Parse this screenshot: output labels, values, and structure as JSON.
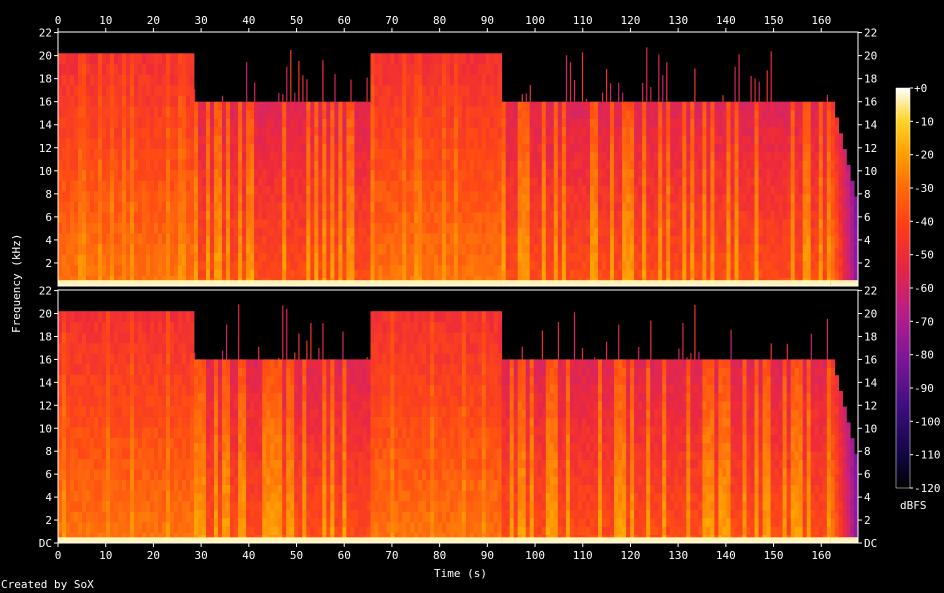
{
  "chart_data": [
    {
      "type": "heatmap",
      "panel": "channel-1",
      "xlabel": "Time (s)",
      "ylabel": "Frequency (kHz)",
      "x_ticks": [
        0,
        10,
        20,
        30,
        40,
        50,
        60,
        70,
        80,
        90,
        100,
        110,
        120,
        130,
        140,
        150,
        160
      ],
      "y_ticks": [
        "2",
        "4",
        "6",
        "8",
        "10",
        "12",
        "14",
        "16",
        "18",
        "20",
        "22"
      ],
      "xlim": [
        0,
        167.7
      ],
      "ylim": [
        0,
        22.05
      ],
      "colorscale": "sox-spectrogram",
      "segments": [
        {
          "start": 0,
          "end": 28.5,
          "cutoff_khz": 20.2,
          "level": "loud"
        },
        {
          "start": 28.5,
          "end": 65.5,
          "cutoff_khz": 16.0,
          "level": "sparse"
        },
        {
          "start": 65.5,
          "end": 93,
          "cutoff_khz": 20.2,
          "level": "loud"
        },
        {
          "start": 93,
          "end": 162,
          "cutoff_khz": 16.0,
          "level": "sparse"
        },
        {
          "start": 162,
          "end": 167.7,
          "cutoff_khz": 16.0,
          "level": "fade"
        }
      ]
    },
    {
      "type": "heatmap",
      "panel": "channel-2",
      "xlabel": "Time (s)",
      "ylabel": "Frequency (kHz)",
      "x_ticks": [
        0,
        10,
        20,
        30,
        40,
        50,
        60,
        70,
        80,
        90,
        100,
        110,
        120,
        130,
        140,
        150,
        160
      ],
      "y_ticks": [
        "DC",
        "2",
        "4",
        "6",
        "8",
        "10",
        "12",
        "14",
        "16",
        "18",
        "20",
        "22"
      ],
      "xlim": [
        0,
        167.7
      ],
      "ylim": [
        0,
        22.05
      ],
      "colorscale": "sox-spectrogram",
      "segments": [
        {
          "start": 0,
          "end": 28.5,
          "cutoff_khz": 20.2,
          "level": "loud"
        },
        {
          "start": 28.5,
          "end": 65.5,
          "cutoff_khz": 16.0,
          "level": "sparse"
        },
        {
          "start": 65.5,
          "end": 93,
          "cutoff_khz": 20.2,
          "level": "loud"
        },
        {
          "start": 93,
          "end": 162,
          "cutoff_khz": 16.0,
          "level": "sparse"
        },
        {
          "start": 162,
          "end": 167.7,
          "cutoff_khz": 16.0,
          "level": "fade"
        }
      ]
    }
  ],
  "colorbar": {
    "ticks": [
      "+0",
      "-10",
      "-20",
      "-30",
      "-40",
      "-50",
      "-60",
      "-70",
      "-80",
      "-90",
      "-100",
      "-110",
      "-120"
    ],
    "unit": "dBFS",
    "min": -120,
    "max": 0
  },
  "labels": {
    "xlabel": "Time (s)",
    "ylabel": "Frequency (kHz)",
    "credit": "Created by SoX"
  },
  "colors": {
    "background": "#000000",
    "axis": "#ffffff",
    "scale": [
      "#000000",
      "#1a0a4e",
      "#4a0f8c",
      "#8d1aa0",
      "#c8227a",
      "#ee2a3a",
      "#ff4a14",
      "#ff7e08",
      "#ffb400",
      "#ffe24a",
      "#ffffff"
    ]
  }
}
